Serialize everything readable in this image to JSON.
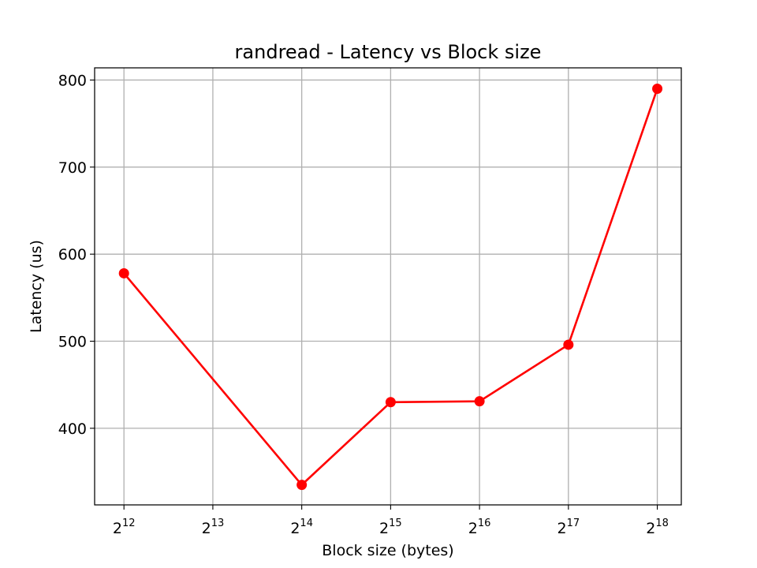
{
  "chart_data": {
    "type": "line",
    "title": "randread - Latency vs Block size",
    "xlabel": "Block size (bytes)",
    "ylabel": "Latency (us)",
    "x_scale": "log2",
    "x": [
      4096,
      16384,
      32768,
      65536,
      131072,
      262144
    ],
    "series": [
      {
        "values": [
          578,
          335,
          430,
          431,
          496,
          790
        ],
        "color": "#ff0000",
        "marker": "circle"
      }
    ],
    "xticks": [
      {
        "base": "2",
        "exp": "12"
      },
      {
        "base": "2",
        "exp": "13"
      },
      {
        "base": "2",
        "exp": "14"
      },
      {
        "base": "2",
        "exp": "15"
      },
      {
        "base": "2",
        "exp": "16"
      },
      {
        "base": "2",
        "exp": "17"
      },
      {
        "base": "2",
        "exp": "18"
      }
    ],
    "yticks": [
      "400",
      "500",
      "600",
      "700",
      "800"
    ],
    "ylim": [
      312,
      814
    ],
    "xlim_exp": [
      11.67,
      18.27
    ],
    "grid": true,
    "legend": "none"
  }
}
